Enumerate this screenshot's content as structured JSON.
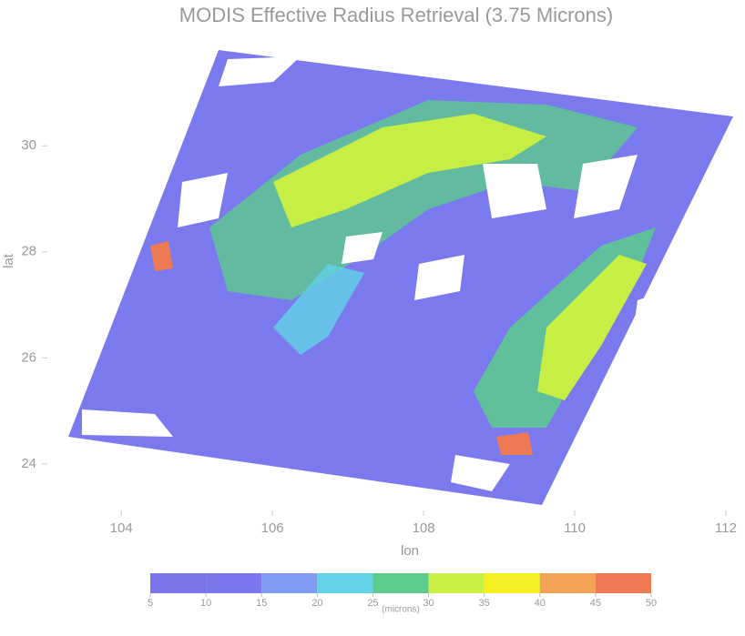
{
  "chart_data": {
    "type": "map",
    "title": "MODIS Effective Radius Retrieval (3.75 Microns)",
    "x_label": "lon",
    "y_label": "lat",
    "xlim": [
      103.6,
      112
    ],
    "xticks": [
      104,
      106,
      108,
      110,
      112
    ],
    "ylim": [
      23.5,
      31.6
    ],
    "yticks": [
      24,
      26,
      28,
      30
    ],
    "colorbar": {
      "label": "(microns)",
      "bounds": [
        5,
        10,
        15,
        20,
        25,
        30,
        35,
        40,
        45,
        50
      ],
      "colors": [
        "#7a74ea",
        "#7a78ee",
        "#7f9cf2",
        "#62d2e6",
        "#5ccc8c",
        "#c6ee44",
        "#f4ee22",
        "#f2a454",
        "#ee7a54"
      ]
    }
  }
}
